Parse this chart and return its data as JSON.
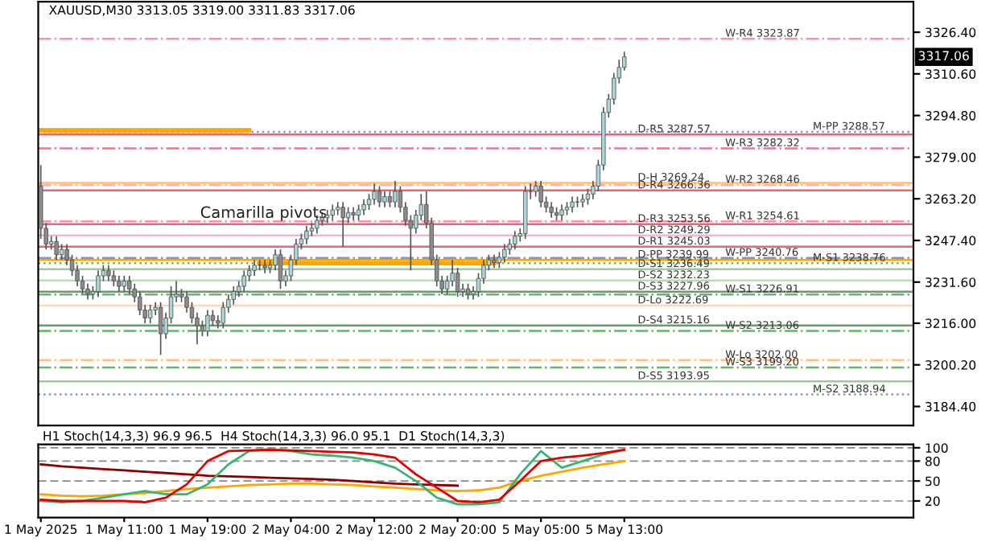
{
  "chart_data": [
    {
      "type": "candlestick",
      "title": "XAUUSD,M30 3313.05 3319.00 3311.83 3317.06",
      "categories": [
        null,
        null,
        null,
        null,
        null,
        null,
        null,
        null,
        null,
        null,
        null,
        null,
        null,
        null,
        null,
        null,
        null,
        null,
        null,
        null,
        null,
        null,
        null,
        null,
        null,
        null,
        null,
        null,
        null,
        null,
        null,
        null,
        null,
        null,
        null,
        null,
        null,
        null,
        null,
        null,
        null,
        null,
        null,
        null,
        null,
        null,
        null,
        null,
        null,
        null,
        null,
        null,
        null,
        null,
        null,
        null,
        null,
        null,
        null,
        null,
        null,
        null,
        null,
        null,
        null,
        null,
        null,
        null,
        null,
        null,
        null,
        null,
        null,
        null,
        null,
        null,
        null,
        null,
        null,
        null,
        null,
        null,
        null,
        null,
        null,
        null,
        null,
        null,
        null,
        null,
        null,
        null,
        null,
        null,
        null,
        null,
        null,
        null,
        null,
        null,
        null,
        null,
        null,
        null,
        null,
        null,
        null,
        null,
        null,
        null,
        null,
        null,
        null,
        null,
        null,
        null,
        null,
        null,
        null,
        null,
        null,
        null,
        null,
        null,
        null,
        null,
        null,
        null,
        null,
        null,
        null,
        null,
        null,
        null,
        null,
        null,
        null,
        null,
        null,
        null,
        null,
        null,
        null,
        null,
        null,
        null,
        null,
        null,
        null,
        null,
        null,
        null,
        null,
        null,
        null,
        null,
        null,
        null,
        null,
        null,
        null,
        null,
        null,
        null,
        null,
        null,
        null,
        null
      ],
      "ohlc": [
        [
          3268,
          3276,
          3248,
          3252
        ],
        [
          3252,
          3254,
          3244,
          3246
        ],
        [
          3246,
          3249,
          3244,
          3247
        ],
        [
          3247,
          3249,
          3240,
          3242
        ],
        [
          3242,
          3246,
          3240,
          3244
        ],
        [
          3244,
          3246,
          3238,
          3240
        ],
        [
          3240,
          3242,
          3234,
          3236
        ],
        [
          3236,
          3238,
          3230,
          3232
        ],
        [
          3232,
          3234,
          3227,
          3229
        ],
        [
          3229,
          3231,
          3225,
          3227
        ],
        [
          3227,
          3230,
          3225,
          3228
        ],
        [
          3228,
          3236,
          3226,
          3234
        ],
        [
          3234,
          3238,
          3232,
          3236
        ],
        [
          3236,
          3238,
          3232,
          3234
        ],
        [
          3234,
          3236,
          3230,
          3232
        ],
        [
          3232,
          3234,
          3228,
          3230
        ],
        [
          3230,
          3234,
          3228,
          3232
        ],
        [
          3232,
          3234,
          3227,
          3229
        ],
        [
          3229,
          3231,
          3224,
          3226
        ],
        [
          3226,
          3228,
          3219,
          3221
        ],
        [
          3221,
          3223,
          3216,
          3218
        ],
        [
          3218,
          3223,
          3216,
          3221
        ],
        [
          3221,
          3224,
          3219,
          3222
        ],
        [
          3222,
          3224,
          3204,
          3212
        ],
        [
          3212,
          3220,
          3210,
          3218
        ],
        [
          3218,
          3230,
          3216,
          3226
        ],
        [
          3226,
          3232,
          3224,
          3227
        ],
        [
          3227,
          3229,
          3224,
          3226
        ],
        [
          3226,
          3228,
          3220,
          3222
        ],
        [
          3222,
          3224,
          3216,
          3218
        ],
        [
          3218,
          3220,
          3208,
          3215
        ],
        [
          3215,
          3217,
          3211,
          3213
        ],
        [
          3213,
          3221,
          3211,
          3219
        ],
        [
          3219,
          3221,
          3215,
          3217
        ],
        [
          3217,
          3219,
          3214,
          3216
        ],
        [
          3216,
          3224,
          3214,
          3222
        ],
        [
          3222,
          3227,
          3220,
          3225
        ],
        [
          3225,
          3230,
          3223,
          3228
        ],
        [
          3228,
          3232,
          3226,
          3230
        ],
        [
          3230,
          3236,
          3228,
          3234
        ],
        [
          3234,
          3238,
          3232,
          3236
        ],
        [
          3236,
          3240,
          3234,
          3238
        ],
        [
          3238,
          3240,
          3236,
          3238
        ],
        [
          3238,
          3240,
          3235,
          3237
        ],
        [
          3237,
          3240,
          3235,
          3238
        ],
        [
          3238,
          3244,
          3236,
          3242
        ],
        [
          3242,
          3244,
          3229,
          3232
        ],
        [
          3232,
          3236,
          3230,
          3234
        ],
        [
          3234,
          3242,
          3232,
          3240
        ],
        [
          3240,
          3248,
          3238,
          3246
        ],
        [
          3246,
          3250,
          3244,
          3248
        ],
        [
          3248,
          3253,
          3246,
          3251
        ],
        [
          3251,
          3254,
          3249,
          3252
        ],
        [
          3252,
          3257,
          3250,
          3255
        ],
        [
          3255,
          3258,
          3253,
          3256
        ],
        [
          3256,
          3259,
          3254,
          3257
        ],
        [
          3257,
          3261,
          3255,
          3259
        ],
        [
          3259,
          3262,
          3257,
          3260
        ],
        [
          3260,
          3262,
          3245,
          3256
        ],
        [
          3256,
          3260,
          3254,
          3258
        ],
        [
          3258,
          3260,
          3255,
          3257
        ],
        [
          3257,
          3261,
          3255,
          3259
        ],
        [
          3259,
          3263,
          3257,
          3261
        ],
        [
          3261,
          3265,
          3259,
          3263
        ],
        [
          3263,
          3269,
          3261,
          3266
        ],
        [
          3266,
          3268,
          3260,
          3262
        ],
        [
          3262,
          3266,
          3260,
          3264
        ],
        [
          3264,
          3266,
          3260,
          3262
        ],
        [
          3262,
          3270,
          3260,
          3266
        ],
        [
          3266,
          3268,
          3258,
          3260
        ],
        [
          3260,
          3262,
          3253,
          3255
        ],
        [
          3255,
          3257,
          3236,
          3252
        ],
        [
          3252,
          3259,
          3250,
          3257
        ],
        [
          3257,
          3265,
          3255,
          3261
        ],
        [
          3261,
          3266,
          3252,
          3254
        ],
        [
          3254,
          3256,
          3238,
          3240
        ],
        [
          3240,
          3242,
          3230,
          3232
        ],
        [
          3232,
          3234,
          3227,
          3229
        ],
        [
          3229,
          3234,
          3227,
          3232
        ],
        [
          3232,
          3240,
          3230,
          3235
        ],
        [
          3235,
          3237,
          3226,
          3228
        ],
        [
          3228,
          3231,
          3226,
          3229
        ],
        [
          3229,
          3231,
          3225,
          3227
        ],
        [
          3227,
          3230,
          3225,
          3228
        ],
        [
          3228,
          3235,
          3226,
          3233
        ],
        [
          3233,
          3240,
          3231,
          3238
        ],
        [
          3238,
          3242,
          3236,
          3240
        ],
        [
          3240,
          3242,
          3237,
          3239
        ],
        [
          3239,
          3243,
          3237,
          3241
        ],
        [
          3241,
          3246,
          3239,
          3244
        ],
        [
          3244,
          3248,
          3242,
          3246
        ],
        [
          3246,
          3251,
          3244,
          3249
        ],
        [
          3249,
          3252,
          3247,
          3250
        ],
        [
          3250,
          3268,
          3248,
          3266
        ],
        [
          3266,
          3269,
          3263,
          3266
        ],
        [
          3266,
          3270,
          3264,
          3268
        ],
        [
          3268,
          3270,
          3260,
          3262
        ],
        [
          3262,
          3264,
          3258,
          3260
        ],
        [
          3260,
          3262,
          3256,
          3258
        ],
        [
          3258,
          3260,
          3255,
          3257
        ],
        [
          3257,
          3261,
          3255,
          3259
        ],
        [
          3259,
          3262,
          3257,
          3260
        ],
        [
          3260,
          3264,
          3258,
          3262
        ],
        [
          3262,
          3264,
          3260,
          3262
        ],
        [
          3262,
          3265,
          3260,
          3263
        ],
        [
          3263,
          3267,
          3261,
          3265
        ],
        [
          3265,
          3270,
          3263,
          3268
        ],
        [
          3268,
          3278,
          3266,
          3276
        ],
        [
          3276,
          3298,
          3274,
          3296
        ],
        [
          3296,
          3303,
          3294,
          3301
        ],
        [
          3301,
          3311,
          3299,
          3309
        ],
        [
          3309,
          3316,
          3307,
          3313.05
        ],
        [
          3313.05,
          3319.0,
          3311.83,
          3317.06
        ],
        null,
        null,
        null,
        null,
        null,
        null,
        null,
        null,
        null,
        null,
        null,
        null,
        null,
        null,
        null,
        null,
        null,
        null,
        null,
        null,
        null,
        null,
        null,
        null,
        null,
        null,
        null,
        null,
        null,
        null,
        null,
        null,
        null,
        null,
        null,
        null,
        null,
        null,
        null,
        null,
        null,
        null,
        null,
        null,
        null,
        null,
        null,
        null,
        null,
        null,
        null,
        null,
        null,
        null,
        null
      ],
      "series": [
        {
          "type": "line",
          "color": "#ffa500",
          "values": [
            3289.2,
            3289.2,
            3289.2,
            3289.2,
            3289.2,
            3289.2,
            3289.2,
            3289.2,
            3289.2,
            3289.2,
            3289.2,
            3289.2,
            3289.2,
            3289.2,
            3289.2,
            3289.2,
            3289.2,
            3289.2,
            3289.2,
            3289.2,
            3289.2,
            3289.2,
            3289.2,
            3289.2,
            3289.2,
            3289.2,
            3289.2,
            3289.2,
            3289.2,
            3289.2,
            3289.2,
            3289.2,
            3289.2,
            3289.2,
            3289.2,
            3289.2,
            3289.2,
            3289.2,
            3289.2,
            3289.2,
            3289.2,
            null,
            3238.8,
            3238.8,
            3238.8,
            3238.8,
            3238.8,
            3238.8,
            3238.8,
            3238.8,
            3238.8,
            3238.8,
            3238.8,
            3238.8,
            3238.8,
            3238.8,
            3238.8,
            3238.8,
            3238.8,
            3238.8,
            3238.8,
            3238.8,
            3238.8,
            3238.8,
            3238.8,
            3238.8,
            3238.8,
            3238.8,
            3238.8,
            3238.8,
            3238.8,
            3238.8,
            3238.8,
            3238.8,
            3238.8,
            3238.8,
            3238.8,
            3238.8,
            3238.8,
            3238.8,
            3238.8,
            3238.8,
            3238.8,
            3238.8,
            3238.8,
            3238.8,
            3238.8,
            3238.8,
            null,
            null,
            null,
            null,
            null,
            null,
            null,
            null,
            null,
            null,
            null,
            null,
            null,
            null,
            null,
            null,
            null,
            null,
            null,
            null,
            null,
            null,
            null,
            null,
            null,
            null,
            null,
            null,
            null,
            null,
            null,
            null,
            null,
            null,
            null,
            null,
            null,
            null,
            null,
            null,
            null,
            null,
            null,
            null,
            null,
            null,
            null,
            null,
            null,
            null,
            null,
            null,
            null,
            null,
            null,
            null,
            null,
            null,
            null,
            null,
            null,
            null,
            null,
            null,
            null,
            null,
            null,
            null,
            null,
            null,
            null,
            null,
            null,
            null,
            null,
            null,
            null,
            null,
            null,
            null
          ]
        }
      ],
      "ylim": [
        3177.2,
        3338.0
      ],
      "yticks": [
        {
          "value": 3184.4,
          "label": "3184.40"
        },
        {
          "value": 3200.2,
          "label": "3200.20"
        },
        {
          "value": 3216.0,
          "label": "3216.00"
        },
        {
          "value": 3231.6,
          "label": "3231.60"
        },
        {
          "value": 3247.4,
          "label": "3247.40"
        },
        {
          "value": 3263.2,
          "label": "3263.20"
        },
        {
          "value": 3279.0,
          "label": "3279.00"
        },
        {
          "value": 3294.8,
          "label": "3294.80"
        },
        {
          "value": 3310.6,
          "label": "3310.60"
        },
        {
          "value": 3326.4,
          "label": "3326.40"
        }
      ],
      "tick_labels": "y",
      "annotations": [
        "Camarilla pivots",
        "3317.06"
      ],
      "ref_lines": [
        {
          "axis": "y",
          "value": 3323.87,
          "label": "W-R4 3323.87",
          "color": "#ff8fa3",
          "line_style": "dashed"
        },
        {
          "axis": "y",
          "value": 3288.57,
          "label": "M-PP 3288.57",
          "color": "#7b96d4",
          "line_style": "dotted"
        },
        {
          "axis": "y",
          "value": 3287.57,
          "label": "D-R5 3287.57",
          "color": "#e06878",
          "line_style": "solid"
        },
        {
          "axis": "y",
          "value": 3282.32,
          "label": "W-R3 3282.32",
          "color": "#ff6f8a",
          "line_style": "dashed"
        },
        {
          "axis": "y",
          "value": 3269.24,
          "label": "D-H 3269.24",
          "color": "#ffc070",
          "line_style": "solid"
        },
        {
          "axis": "y",
          "value": 3268.46,
          "label": "W-R2 3268.46",
          "color": "#ffb0c0",
          "line_style": "dashed"
        },
        {
          "axis": "y",
          "value": 3266.36,
          "label": "D-R4 3266.36",
          "color": "#e06878",
          "line_style": "solid"
        },
        {
          "axis": "y",
          "value": 3254.61,
          "label": "W-R1 3254.61",
          "color": "#ff8fa3",
          "line_style": "dashed"
        },
        {
          "axis": "y",
          "value": 3253.56,
          "label": "D-R3 3253.56",
          "color": "#e06878",
          "line_style": "solid"
        },
        {
          "axis": "y",
          "value": 3249.29,
          "label": "D-R2 3249.29",
          "color": "#f5b8c4",
          "line_style": "solid"
        },
        {
          "axis": "y",
          "value": 3245.03,
          "label": "D-R1 3245.03",
          "color": "#e06878",
          "line_style": "solid"
        },
        {
          "axis": "y",
          "value": 3240.76,
          "label": "W-PP 3240.76",
          "color": "#7b96d4",
          "line_style": "dashed"
        },
        {
          "axis": "y",
          "value": 3239.99,
          "label": "D-PP 3239.99",
          "color": "#ffa500",
          "line_style": "solid"
        },
        {
          "axis": "y",
          "value": 3238.76,
          "label": "M-S1 3238.76",
          "color": "#70b070",
          "line_style": "dotted"
        },
        {
          "axis": "y",
          "value": 3236.49,
          "label": "D-S1 3236.49",
          "color": "#9ccc9c",
          "line_style": "solid"
        },
        {
          "axis": "y",
          "value": 3232.23,
          "label": "D-S2 3232.23",
          "color": "#b8dcb8",
          "line_style": "solid"
        },
        {
          "axis": "y",
          "value": 3227.96,
          "label": "D-S3 3227.96",
          "color": "#5ea45e",
          "line_style": "solid"
        },
        {
          "axis": "y",
          "value": 3226.91,
          "label": "W-S1 3226.91",
          "color": "#70b070",
          "line_style": "dashed"
        },
        {
          "axis": "y",
          "value": 3222.69,
          "label": "D-Lo 3222.69",
          "color": "#ffd8b0",
          "line_style": "solid"
        },
        {
          "axis": "y",
          "value": 3215.16,
          "label": "D-S4 3215.16",
          "color": "#5ea45e",
          "line_style": "solid"
        },
        {
          "axis": "y",
          "value": 3213.06,
          "label": "W-S2 3213.06",
          "color": "#70b070",
          "line_style": "dashed"
        },
        {
          "axis": "y",
          "value": 3202.0,
          "label": "W-Lo 3202.00",
          "color": "#ffc080",
          "line_style": "dashed"
        },
        {
          "axis": "y",
          "value": 3199.2,
          "label": "W-S3 3199.20",
          "color": "#70b070",
          "line_style": "dashed"
        },
        {
          "axis": "y",
          "value": 3193.95,
          "label": "D-S5 3193.95",
          "color": "#9ccc9c",
          "line_style": "solid"
        },
        {
          "axis": "y",
          "value": 3188.94,
          "label": "M-S2 3188.94",
          "color": "#70b070",
          "line_style": "dotted"
        }
      ],
      "grid": false
    },
    {
      "type": "line",
      "title": "H1 Stoch(14,3,3) 96.9 96.5  H4 Stoch(14,3,3) 96.0 95.1  D1 Stoch(14,3,3)",
      "categories": [
        "1 May 2025",
        null,
        null,
        null,
        "1 May 11:00",
        null,
        null,
        null,
        "1 May 19:00",
        null,
        null,
        null,
        "2 May 04:00",
        null,
        null,
        null,
        "2 May 12:00",
        null,
        null,
        null,
        "2 May 20:00",
        null,
        null,
        null,
        "5 May 05:00",
        null,
        null,
        null,
        "5 May 13:00",
        null,
        null,
        null,
        null,
        null,
        null,
        null,
        null,
        null,
        null,
        null,
        null,
        null
      ],
      "series": [
        {
          "color": "#8b0000",
          "values": [
            75,
            72,
            70,
            68,
            66,
            64,
            62,
            60,
            58,
            57,
            56,
            55,
            54,
            53,
            52,
            50,
            48,
            46,
            45,
            44,
            43,
            null,
            null,
            null,
            null,
            null,
            null,
            null,
            null,
            null,
            null,
            null,
            null,
            null,
            null,
            null,
            null,
            null,
            null,
            null,
            null,
            null
          ]
        },
        {
          "color": "#ffa500",
          "values": [
            30,
            28,
            27,
            28,
            30,
            32,
            35,
            38,
            40,
            42,
            44,
            45,
            46,
            46,
            45,
            44,
            42,
            40,
            38,
            36,
            35,
            36,
            40,
            50,
            58,
            64,
            70,
            75,
            80,
            null,
            null,
            null,
            null,
            null,
            null,
            null,
            null,
            null,
            null,
            null,
            null,
            null
          ]
        },
        {
          "color": "#3cb371",
          "values": [
            20,
            18,
            20,
            25,
            30,
            35,
            30,
            30,
            45,
            75,
            95,
            98,
            95,
            90,
            88,
            85,
            80,
            70,
            50,
            25,
            15,
            15,
            18,
            60,
            95,
            70,
            80,
            90,
            97,
            null,
            null,
            null,
            null,
            null,
            null,
            null,
            null,
            null,
            null,
            null,
            null,
            null
          ]
        },
        {
          "color": "#e00000",
          "values": [
            22,
            20,
            20,
            20,
            20,
            18,
            25,
            45,
            80,
            95,
            96,
            97,
            96,
            95,
            94,
            93,
            90,
            85,
            60,
            40,
            20,
            18,
            22,
            50,
            80,
            85,
            88,
            92,
            97,
            null,
            null,
            null,
            null,
            null,
            null,
            null,
            null,
            null,
            null,
            null,
            null,
            null
          ]
        }
      ],
      "ylim": [
        -5,
        105
      ],
      "yticks": [
        20,
        50,
        80,
        100
      ],
      "grid": "y"
    }
  ]
}
